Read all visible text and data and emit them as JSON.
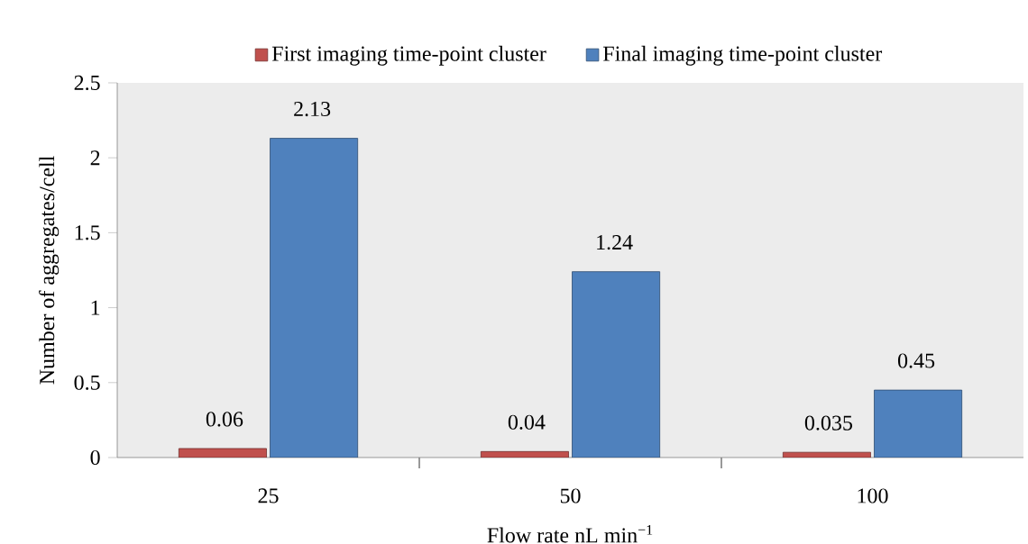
{
  "chart_data": {
    "type": "bar",
    "xlabel": "Flow rate nL min$^{−1}$",
    "ylabel": "Number of aggregates/cell",
    "categories": [
      "25",
      "50",
      "100"
    ],
    "series": [
      {
        "name": "First imaging time-point cluster",
        "color": "#c0504d",
        "values": [
          0.06,
          0.04,
          0.035
        ]
      },
      {
        "name": "Final imaging time-point cluster",
        "color": "#4f81bd",
        "values": [
          2.13,
          1.24,
          0.45
        ]
      }
    ],
    "ylim": [
      0,
      2.5
    ],
    "yticks": [
      0,
      0.5,
      1,
      1.5,
      2,
      2.5
    ],
    "data_labels": true,
    "legend": "top",
    "grid": false
  }
}
